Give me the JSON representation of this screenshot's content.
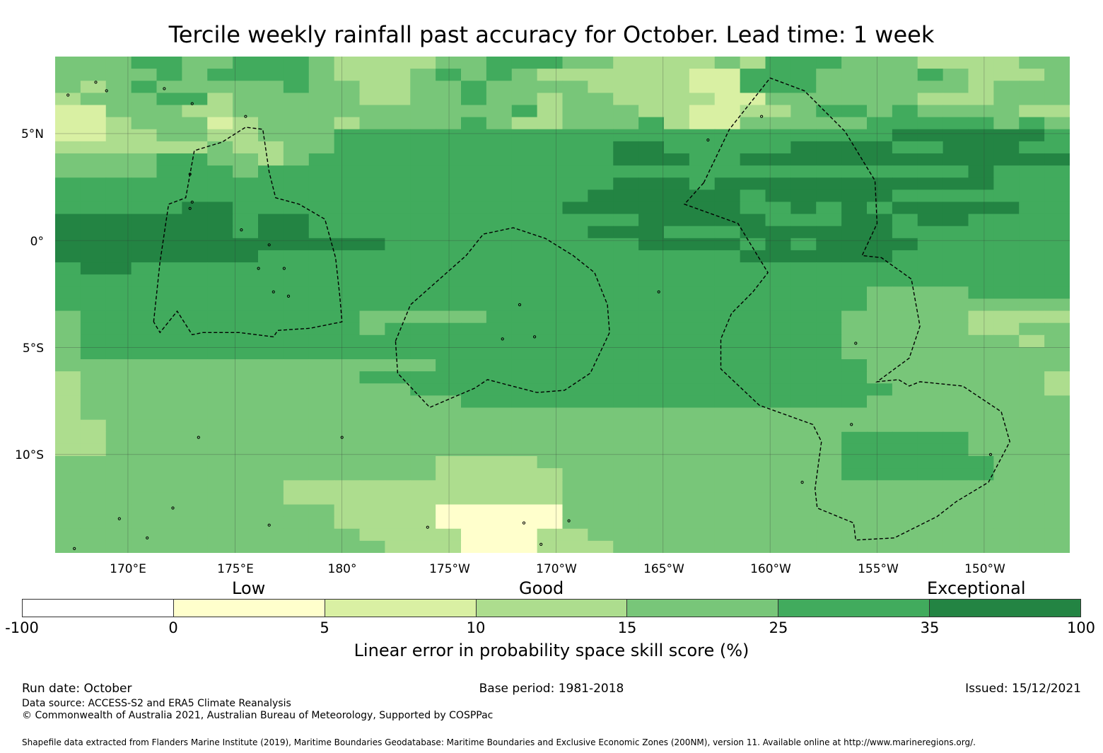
{
  "title": "Tercile weekly rainfall past accuracy for October. Lead time: 1 week",
  "map": {
    "lat_labels": [
      "5°N",
      "0°",
      "5°S",
      "10°S"
    ],
    "lon_labels": [
      "170°E",
      "175°E",
      "180°",
      "175°W",
      "170°W",
      "165°W",
      "160°W",
      "155°W",
      "150°W"
    ],
    "extent": {
      "lon_min": 166.6,
      "lon_max": 214.0,
      "lat_min": -14.6,
      "lat_max": 8.6
    },
    "graticule_lons": [
      170,
      175,
      180,
      185,
      190,
      195,
      200,
      205,
      210
    ],
    "graticule_lats": [
      5,
      0,
      -5,
      -10
    ],
    "eez_boundaries_lonlat": [
      [
        [
          171.2,
          -3.8
        ],
        [
          171.5,
          -1
        ],
        [
          171.9,
          1.7
        ],
        [
          172.7,
          2
        ],
        [
          173.1,
          4.2
        ],
        [
          174.4,
          4.6
        ],
        [
          175.5,
          5.3
        ],
        [
          176.3,
          5.2
        ],
        [
          176.6,
          3.2
        ],
        [
          176.9,
          2
        ],
        [
          178,
          1.7
        ],
        [
          179.2,
          1
        ],
        [
          179.7,
          -0.8
        ],
        [
          179.9,
          -2.6
        ],
        [
          180.0,
          -3.8
        ],
        [
          178.5,
          -4.1
        ],
        [
          177.0,
          -4.2
        ],
        [
          176.8,
          -4.5
        ],
        [
          175.2,
          -4.3
        ],
        [
          173.5,
          -4.3
        ],
        [
          173,
          -4.4
        ],
        [
          172.3,
          -3.3
        ],
        [
          171.5,
          -4.3
        ],
        [
          171.2,
          -3.8
        ]
      ],
      [
        [
          182.5,
          -4.7
        ],
        [
          183.2,
          -3.0
        ],
        [
          185.8,
          -0.7
        ],
        [
          186.6,
          0.3
        ],
        [
          188.0,
          0.6
        ],
        [
          189.5,
          0.1
        ],
        [
          190.8,
          -0.7
        ],
        [
          191.8,
          -1.5
        ],
        [
          192.4,
          -3.0
        ],
        [
          192.5,
          -4.3
        ],
        [
          191.6,
          -6.2
        ],
        [
          190.4,
          -7.0
        ],
        [
          189.1,
          -7.1
        ],
        [
          186.8,
          -6.5
        ],
        [
          186.2,
          -6.9
        ],
        [
          184.1,
          -7.8
        ],
        [
          182.6,
          -6.2
        ],
        [
          182.5,
          -4.7
        ]
      ],
      [
        [
          196.9,
          2.7
        ],
        [
          198.1,
          5.2
        ],
        [
          200.0,
          7.6
        ],
        [
          201.6,
          7.0
        ],
        [
          203.5,
          5.1
        ],
        [
          204.9,
          2.8
        ],
        [
          205.0,
          0.8
        ],
        [
          204.3,
          -0.7
        ],
        [
          205.2,
          -0.8
        ],
        [
          206.6,
          -1.8
        ],
        [
          207.0,
          -4.0
        ],
        [
          206.5,
          -5.5
        ],
        [
          205.0,
          -6.6
        ],
        [
          206.0,
          -6.5
        ],
        [
          206.5,
          -6.8
        ],
        [
          207.0,
          -6.6
        ],
        [
          209.0,
          -6.8
        ],
        [
          210.8,
          -8.0
        ],
        [
          211.2,
          -9.4
        ],
        [
          210.2,
          -11.3
        ],
        [
          208.7,
          -12.2
        ],
        [
          207.8,
          -12.9
        ],
        [
          205.8,
          -13.9
        ],
        [
          204.0,
          -14.0
        ],
        [
          203.9,
          -13.2
        ],
        [
          202.2,
          -12.5
        ],
        [
          202.1,
          -11.6
        ],
        [
          202.4,
          -9.4
        ],
        [
          202.0,
          -8.6
        ],
        [
          199.5,
          -7.7
        ],
        [
          197.7,
          -6.0
        ],
        [
          197.7,
          -4.6
        ],
        [
          198.2,
          -3.4
        ],
        [
          199.2,
          -2.4
        ],
        [
          199.9,
          -1.5
        ],
        [
          198.5,
          0.8
        ],
        [
          196.0,
          1.7
        ],
        [
          196.9,
          2.7
        ]
      ]
    ],
    "islands_lonlat": [
      [
        167.2,
        6.8
      ],
      [
        168.5,
        7.4
      ],
      [
        169.0,
        7.0
      ],
      [
        171.7,
        7.1
      ],
      [
        173.0,
        6.4
      ],
      [
        175.5,
        5.8
      ],
      [
        172.9,
        3.1
      ],
      [
        173.0,
        1.8
      ],
      [
        172.9,
        1.5
      ],
      [
        175.3,
        0.5
      ],
      [
        176.6,
        -0.2
      ],
      [
        176.1,
        -1.3
      ],
      [
        177.3,
        -1.3
      ],
      [
        176.8,
        -2.4
      ],
      [
        177.5,
        -2.6
      ],
      [
        188.3,
        -3.0
      ],
      [
        187.5,
        -4.6
      ],
      [
        189.0,
        -4.5
      ],
      [
        194.8,
        -2.4
      ],
      [
        197.1,
        4.7
      ],
      [
        199.6,
        5.8
      ],
      [
        201.5,
        -11.3
      ],
      [
        204.0,
        -4.8
      ],
      [
        210.3,
        -10.0
      ],
      [
        203.8,
        -8.6
      ],
      [
        190.6,
        -13.1
      ],
      [
        188.5,
        -13.2
      ],
      [
        189.3,
        -14.2
      ],
      [
        184.0,
        -13.4
      ],
      [
        180.0,
        -9.2
      ],
      [
        173.3,
        -9.2
      ],
      [
        169.6,
        -13.0
      ],
      [
        172.1,
        -12.5
      ],
      [
        176.6,
        -13.3
      ],
      [
        170.9,
        -13.9
      ],
      [
        167.5,
        -14.4
      ]
    ],
    "land_cells": [
      [
        "0,0,0,0,1,1,1,0,0,0,0,1,0,1,0,0,1,1,1,0,1,0,0,0,0,1,1,1,1,1,0,0,0,0,1,1,1,0,0,0,0,1,1,0,0,0,0,1,0,1,0,0,0,0,0,0,1,1,1,0]"
      ]
    ],
    "grid_rows": [
      "4445544555433334455544333343555444333344",
      "4444545555433345454333333225554444543334",
      "4345444445443344544443333225554444443444",
      "3444553444443344544344333322444444333444",
      "2244433444444444445344433223345545444433",
      "2234442344434444543344453224444455555454",
      "2233443344455555555555555555555556666665",
      "3333334334455555555555665555566665566655",
      "4444554434555555555555666556666666666666",
      "4444555455555555555555555555555555556555",
      "5555555555555555555555666566666666666555",
      "5555555555555555555556666665666665555555",
      "5555566555555555555566666665565656666655",
      "6666666566555555555555566666555665665555",
      "6666666566555555555556665556666665555555",
      "6666666666666555555555566665656666555555",
      "6666666655555555555555555556666665555555",
      "5665555555555555555555555555555555555555",
      "5555555555555555555555555555555555555555",
      "5555555555555555555555555555555544445555",
      "5555555555555555555555555555555544444444",
      "4555555555554444455555555555555444443333",
      "4555555555554555555555555555555444443344",
      "4555555555555555555555555555555444444434",
      "4555555555555555555555555555555444444444",
      "4444444444444445555555555555555544444444",
      "3444444444445555555555555555555544444443",
      "3444444444444455555555555555555554444443",
      "3444444444444444555555555555555544444444",
      "3444444444444444444444444444444444444444",
      "3344444444444444444444444444444444444444",
      "3344444444444444444444444444444555554444",
      "3344444444444444444444444444444555554444",
      "4444444444444443333444444444444555555444",
      "4444444444444443333344444444444555555444",
      "4444444443333333333344444444444444444444",
      "4444444443333333333344444444444444444444",
      "4444444444433331111144444444444444444444",
      "4444444444433331111144444444444444444444",
      "4444444444443333111334444444444444444444",
      "4444444444444333111333444444444444444444"
    ]
  },
  "categories": {
    "low": "Low",
    "good": "Good",
    "exceptional": "Exceptional"
  },
  "colorbar": {
    "colors": [
      "#ffffff",
      "#ffffcc",
      "#d9f0a3",
      "#addd8e",
      "#78c679",
      "#41ab5d",
      "#238443"
    ],
    "ticks": [
      "-100",
      "0",
      "5",
      "10",
      "15",
      "25",
      "35",
      "100"
    ],
    "label": "Linear error in probability space skill score (%)"
  },
  "footer": {
    "run_date": "Run date: October",
    "base_period": "Base period: 1981-2018",
    "issued": "Issued: 15/12/2021",
    "data_source": "Data source: ACCESS-S2 and ERA5 Climate Reanalysis",
    "copyright": "© Commonwealth of Australia 2021, Australian Bureau of Meteorology, Supported by COSPPac",
    "shapefile": "Shapefile data extracted from Flanders Marine Institute (2019), Maritime Boundaries Geodatabase: Maritime Boundaries and Exclusive Economic Zones (200NM), version 11. Available online at http://www.marineregions.org/."
  }
}
